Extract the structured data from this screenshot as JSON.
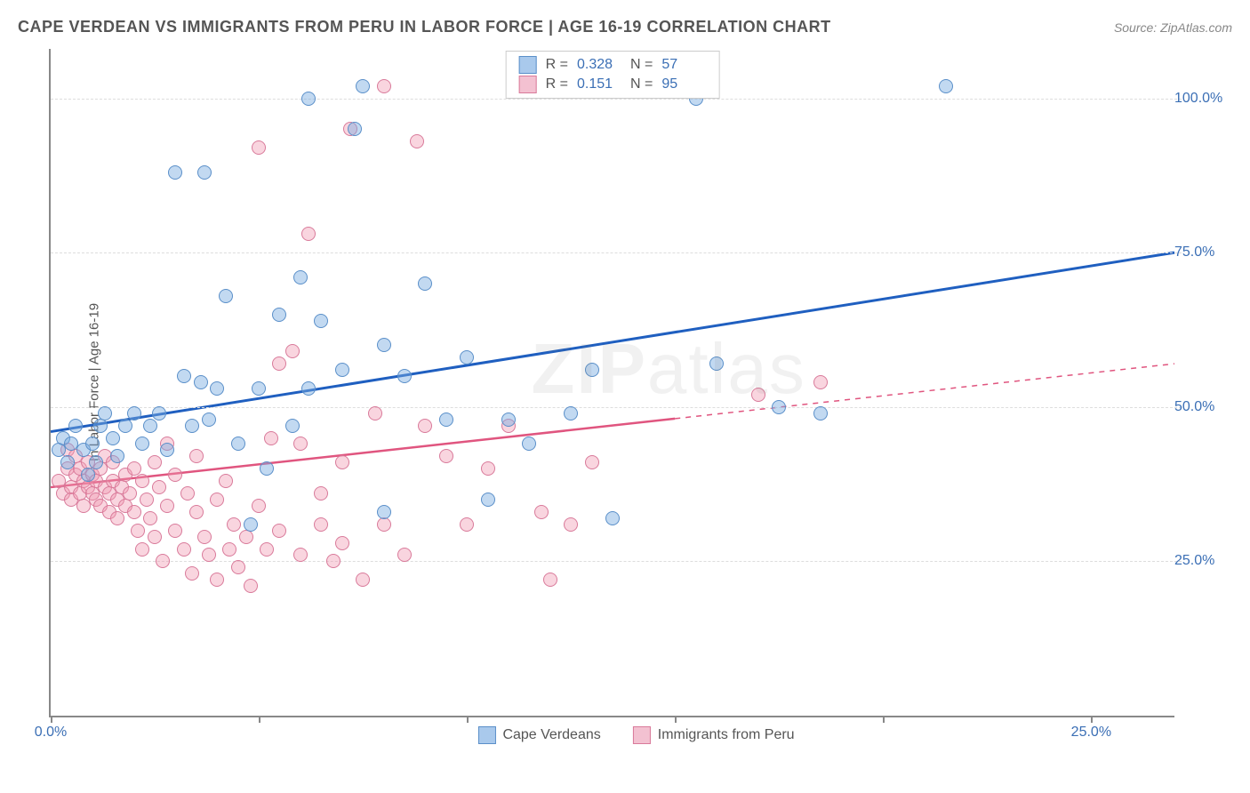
{
  "header": {
    "title": "CAPE VERDEAN VS IMMIGRANTS FROM PERU IN LABOR FORCE | AGE 16-19 CORRELATION CHART",
    "source": "Source: ZipAtlas.com"
  },
  "watermark": {
    "zip": "ZIP",
    "atlas": "atlas"
  },
  "chart": {
    "type": "scatter",
    "background_color": "#ffffff",
    "grid_color": "#dddddd",
    "axis_color": "#888888",
    "label_fontsize": 15,
    "tick_fontsize": 16,
    "tick_color": "#3b6fb5",
    "ylabel": "In Labor Force | Age 16-19",
    "xlim": [
      0,
      27
    ],
    "ylim": [
      0,
      108
    ],
    "y_gridlines": [
      25,
      50,
      75,
      100
    ],
    "y_tick_labels": [
      "25.0%",
      "50.0%",
      "75.0%",
      "100.0%"
    ],
    "x_ticks": [
      0,
      5,
      10,
      15,
      20,
      25
    ],
    "x_tick_labels_shown": {
      "0": "0.0%",
      "25": "25.0%"
    },
    "marker_radius": 8,
    "marker_stroke_width": 1.5,
    "series": [
      {
        "name": "Cape Verdeans",
        "fill_color": "rgba(120,170,225,0.45)",
        "stroke_color": "#5a8fc9",
        "swatch_fill": "#a9c9ec",
        "swatch_stroke": "#5a8fc9",
        "R": "0.328",
        "N": "57",
        "trend": {
          "color": "#1f5fc0",
          "width": 3,
          "dash_from_x": 27,
          "y_at_x0": 46,
          "y_at_xmax": 75
        },
        "points": [
          [
            0.2,
            43
          ],
          [
            0.3,
            45
          ],
          [
            0.4,
            41
          ],
          [
            0.5,
            44
          ],
          [
            0.6,
            47
          ],
          [
            0.8,
            43
          ],
          [
            0.9,
            39
          ],
          [
            1.0,
            44
          ],
          [
            1.1,
            41
          ],
          [
            1.2,
            47
          ],
          [
            1.3,
            49
          ],
          [
            1.5,
            45
          ],
          [
            1.6,
            42
          ],
          [
            1.8,
            47
          ],
          [
            2.0,
            49
          ],
          [
            2.2,
            44
          ],
          [
            2.4,
            47
          ],
          [
            2.6,
            49
          ],
          [
            2.8,
            43
          ],
          [
            3.0,
            88
          ],
          [
            3.2,
            55
          ],
          [
            3.4,
            47
          ],
          [
            3.6,
            54
          ],
          [
            3.7,
            88
          ],
          [
            3.8,
            48
          ],
          [
            4.0,
            53
          ],
          [
            4.2,
            68
          ],
          [
            4.5,
            44
          ],
          [
            4.8,
            31
          ],
          [
            5.0,
            53
          ],
          [
            5.2,
            40
          ],
          [
            5.5,
            65
          ],
          [
            5.8,
            47
          ],
          [
            6.0,
            71
          ],
          [
            6.2,
            53
          ],
          [
            6.2,
            100
          ],
          [
            6.5,
            64
          ],
          [
            7.0,
            56
          ],
          [
            7.3,
            95
          ],
          [
            7.5,
            102
          ],
          [
            8.0,
            60
          ],
          [
            8.0,
            33
          ],
          [
            8.5,
            55
          ],
          [
            9.0,
            70
          ],
          [
            9.5,
            48
          ],
          [
            10.0,
            58
          ],
          [
            10.5,
            35
          ],
          [
            11.0,
            48
          ],
          [
            11.5,
            44
          ],
          [
            12.5,
            49
          ],
          [
            13.0,
            56
          ],
          [
            13.5,
            32
          ],
          [
            15.5,
            100
          ],
          [
            16.0,
            57
          ],
          [
            17.5,
            50
          ],
          [
            18.5,
            49
          ],
          [
            21.5,
            102
          ]
        ]
      },
      {
        "name": "Immigrants from Peru",
        "fill_color": "rgba(240,150,175,0.40)",
        "stroke_color": "#d97a9a",
        "swatch_fill": "#f3c1d1",
        "swatch_stroke": "#d97a9a",
        "R": "0.151",
        "N": "95",
        "trend": {
          "color": "#e0557f",
          "width": 2.5,
          "dash_from_x": 15,
          "y_at_x0": 37,
          "y_at_xmax": 57
        },
        "points": [
          [
            0.2,
            38
          ],
          [
            0.3,
            36
          ],
          [
            0.4,
            40
          ],
          [
            0.4,
            43
          ],
          [
            0.5,
            37
          ],
          [
            0.5,
            35
          ],
          [
            0.6,
            39
          ],
          [
            0.6,
            42
          ],
          [
            0.7,
            36
          ],
          [
            0.7,
            40
          ],
          [
            0.8,
            38
          ],
          [
            0.8,
            34
          ],
          [
            0.9,
            37
          ],
          [
            0.9,
            41
          ],
          [
            1.0,
            36
          ],
          [
            1.0,
            39
          ],
          [
            1.1,
            35
          ],
          [
            1.1,
            38
          ],
          [
            1.2,
            40
          ],
          [
            1.2,
            34
          ],
          [
            1.3,
            37
          ],
          [
            1.3,
            42
          ],
          [
            1.4,
            36
          ],
          [
            1.4,
            33
          ],
          [
            1.5,
            38
          ],
          [
            1.5,
            41
          ],
          [
            1.6,
            35
          ],
          [
            1.6,
            32
          ],
          [
            1.7,
            37
          ],
          [
            1.8,
            39
          ],
          [
            1.8,
            34
          ],
          [
            1.9,
            36
          ],
          [
            2.0,
            40
          ],
          [
            2.0,
            33
          ],
          [
            2.1,
            30
          ],
          [
            2.2,
            38
          ],
          [
            2.2,
            27
          ],
          [
            2.3,
            35
          ],
          [
            2.4,
            32
          ],
          [
            2.5,
            41
          ],
          [
            2.5,
            29
          ],
          [
            2.6,
            37
          ],
          [
            2.7,
            25
          ],
          [
            2.8,
            34
          ],
          [
            2.8,
            44
          ],
          [
            3.0,
            30
          ],
          [
            3.0,
            39
          ],
          [
            3.2,
            27
          ],
          [
            3.3,
            36
          ],
          [
            3.4,
            23
          ],
          [
            3.5,
            33
          ],
          [
            3.5,
            42
          ],
          [
            3.7,
            29
          ],
          [
            3.8,
            26
          ],
          [
            4.0,
            35
          ],
          [
            4.0,
            22
          ],
          [
            4.2,
            38
          ],
          [
            4.3,
            27
          ],
          [
            4.4,
            31
          ],
          [
            4.5,
            24
          ],
          [
            4.7,
            29
          ],
          [
            4.8,
            21
          ],
          [
            5.0,
            34
          ],
          [
            5.0,
            92
          ],
          [
            5.2,
            27
          ],
          [
            5.3,
            45
          ],
          [
            5.5,
            30
          ],
          [
            5.5,
            57
          ],
          [
            5.8,
            59
          ],
          [
            6.0,
            26
          ],
          [
            6.0,
            44
          ],
          [
            6.2,
            78
          ],
          [
            6.5,
            36
          ],
          [
            6.5,
            31
          ],
          [
            6.8,
            25
          ],
          [
            7.0,
            41
          ],
          [
            7.0,
            28
          ],
          [
            7.2,
            95
          ],
          [
            7.5,
            22
          ],
          [
            7.8,
            49
          ],
          [
            8.0,
            31
          ],
          [
            8.0,
            102
          ],
          [
            8.5,
            26
          ],
          [
            8.8,
            93
          ],
          [
            9.0,
            47
          ],
          [
            9.5,
            42
          ],
          [
            10.0,
            31
          ],
          [
            10.5,
            40
          ],
          [
            11.0,
            47
          ],
          [
            11.8,
            33
          ],
          [
            12.0,
            22
          ],
          [
            12.5,
            31
          ],
          [
            13.0,
            41
          ],
          [
            17.0,
            52
          ],
          [
            18.5,
            54
          ]
        ]
      }
    ],
    "legend_bottom": [
      {
        "label": "Cape Verdeans",
        "series": 0
      },
      {
        "label": "Immigrants from Peru",
        "series": 1
      }
    ]
  }
}
